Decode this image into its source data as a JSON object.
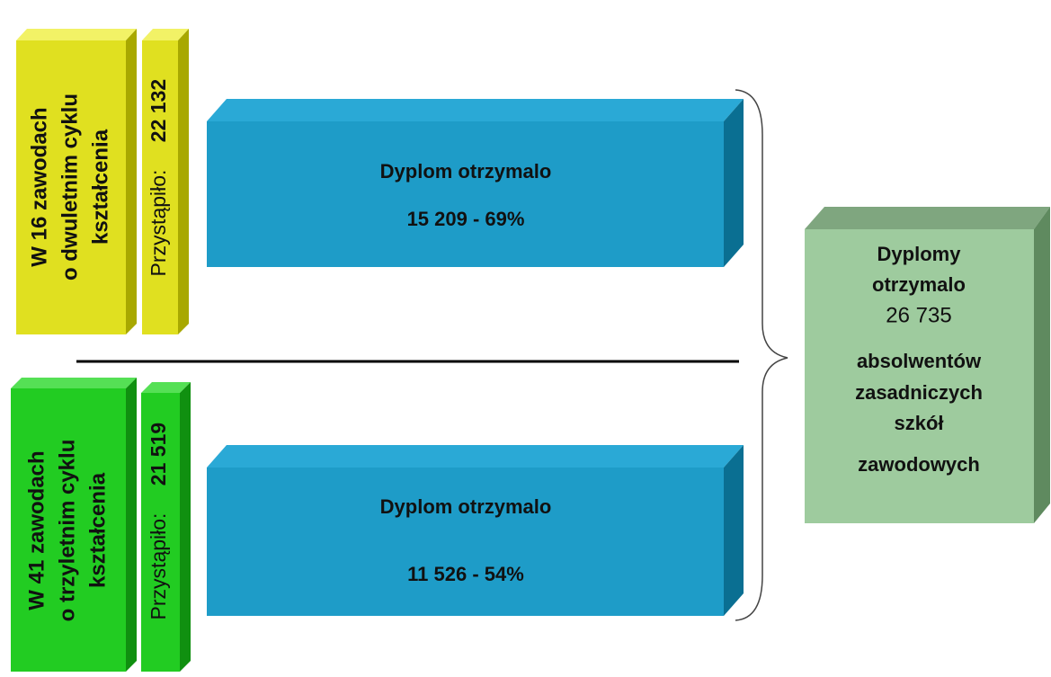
{
  "groups": [
    {
      "title": [
        "W 16 zawodach",
        "o dwuletnim cyklu",
        "kształcenia"
      ],
      "participants_label": "Przystąpiło:",
      "participants": "22 132",
      "result": [
        "Dyplom otrzymalo",
        "15 209 -  69%"
      ]
    },
    {
      "title": [
        "W 41 zawodach",
        "o trzyletnim cyklu",
        "kształcenia"
      ],
      "participants_label": "Przystąpiło:",
      "participants": "21 519",
      "result": [
        "Dyplom otrzymalo",
        "11 526 - 54%"
      ]
    }
  ],
  "summary": [
    "Dyplomy",
    "otrzymalo",
    "26 735",
    "absolwentów",
    "zasadniczych",
    "szkół",
    "zawodowych"
  ]
}
